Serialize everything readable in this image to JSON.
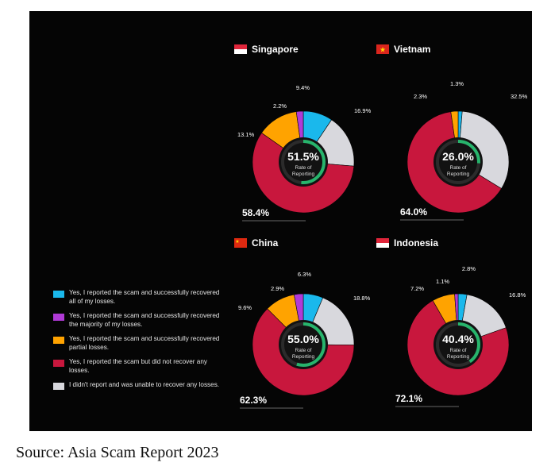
{
  "colors": {
    "panel_bg": "#050505",
    "fully_recovered": "#1ab8ec",
    "majority_recovered": "#b03ad6",
    "partial_recovered": "#ffa300",
    "not_recovered": "#c8173d",
    "did_not_report": "#d8d8dd",
    "gauge_ring": "#27b46c"
  },
  "legend": [
    {
      "key": "fully_recovered",
      "text": "Yes, I reported the scam and successfully recovered all of my losses."
    },
    {
      "key": "majority_recovered",
      "text": "Yes, I reported the scam and successfully recovered the majority of my losses."
    },
    {
      "key": "partial_recovered",
      "text": "Yes, I reported the scam and successfully recovered partial losses."
    },
    {
      "key": "not_recovered",
      "text": "Yes, I reported the scam but did not recover any losses."
    },
    {
      "key": "did_not_report",
      "text": "I didn't report and was unable to recover any losses."
    }
  ],
  "center_label": "Rate of Reporting",
  "caption": "Source: Asia Scam Report 2023",
  "chart_data": [
    {
      "type": "pie",
      "country": "Singapore",
      "flag_icon": "singapore-flag-icon",
      "rate_of_reporting": "51.5%",
      "categories": [
        "fully_recovered",
        "did_not_report",
        "not_recovered",
        "partial_recovered",
        "majority_recovered"
      ],
      "values": [
        9.4,
        16.9,
        58.4,
        13.1,
        2.2
      ],
      "labels": [
        "9.4%",
        "16.9%",
        "58.4%",
        "13.1%",
        "2.2%"
      ]
    },
    {
      "type": "pie",
      "country": "Vietnam",
      "flag_icon": "vietnam-flag-icon",
      "rate_of_reporting": "26.0%",
      "categories": [
        "fully_recovered",
        "did_not_report",
        "not_recovered",
        "partial_recovered",
        "majority_recovered"
      ],
      "values": [
        1.3,
        32.5,
        64.0,
        2.3,
        0
      ],
      "labels": [
        "1.3%",
        "32.5%",
        "64.0%",
        "2.3%",
        ""
      ]
    },
    {
      "type": "pie",
      "country": "China",
      "flag_icon": "china-flag-icon",
      "rate_of_reporting": "55.0%",
      "categories": [
        "fully_recovered",
        "did_not_report",
        "not_recovered",
        "partial_recovered",
        "majority_recovered"
      ],
      "values": [
        6.3,
        18.8,
        62.3,
        9.6,
        2.9
      ],
      "labels": [
        "6.3%",
        "18.8%",
        "62.3%",
        "9.6%",
        "2.9%"
      ]
    },
    {
      "type": "pie",
      "country": "Indonesia",
      "flag_icon": "indonesia-flag-icon",
      "rate_of_reporting": "40.4%",
      "categories": [
        "fully_recovered",
        "did_not_report",
        "not_recovered",
        "partial_recovered",
        "majority_recovered"
      ],
      "values": [
        2.8,
        16.8,
        72.1,
        7.2,
        1.1
      ],
      "labels": [
        "2.8%",
        "16.8%",
        "72.1%",
        "7.2%",
        "1.1%"
      ]
    }
  ]
}
